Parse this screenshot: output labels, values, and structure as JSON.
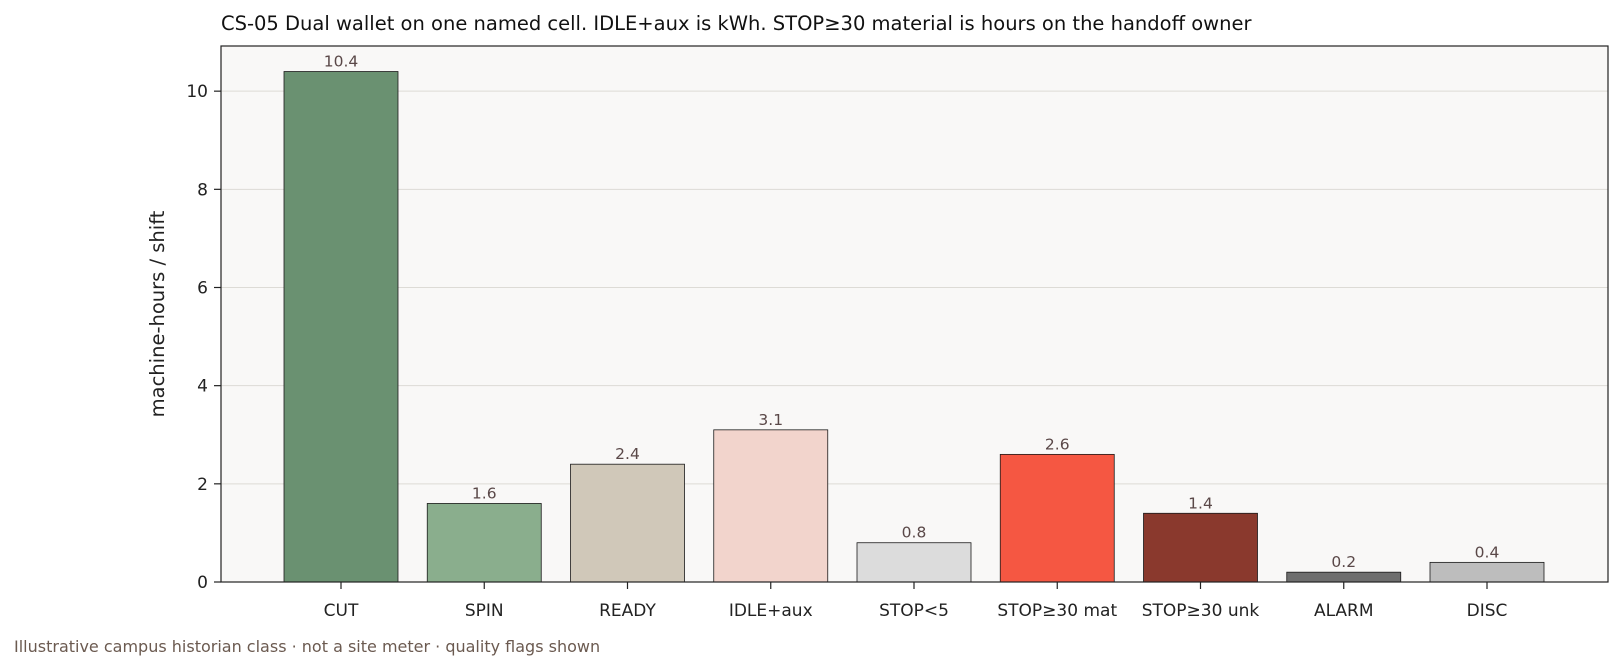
{
  "chart_data": {
    "type": "bar",
    "title": "CS-05  Dual wallet on one named cell. IDLE+aux is kWh. STOP≥30 material is hours on the handoff owner",
    "xlabel": "",
    "ylabel": "machine-hours / shift",
    "ylim": [
      0,
      10.92
    ],
    "yticks": [
      0,
      2,
      4,
      6,
      8,
      10
    ],
    "grid": "horizontal",
    "categories": [
      "CUT",
      "SPIN",
      "READY",
      "IDLE+aux",
      "STOP<5",
      "STOP≥30 mat",
      "STOP≥30 unk",
      "ALARM",
      "DISC"
    ],
    "values": [
      10.4,
      1.6,
      2.4,
      3.1,
      0.8,
      2.6,
      1.4,
      0.2,
      0.4
    ],
    "value_labels": [
      "10.4",
      "1.6",
      "2.4",
      "3.1",
      "0.8",
      "2.6",
      "1.4",
      "0.2",
      "0.4"
    ],
    "colors": [
      "#6a9171",
      "#8aae8d",
      "#d0c8b9",
      "#f2d4cc",
      "#dcdcdc",
      "#f55742",
      "#8a392d",
      "#6e6e6e",
      "#bdbdbd"
    ],
    "plot_background": "#f9f8f7",
    "footnote": "Illustrative campus historian class  ·  not a site meter  ·  quality flags shown"
  }
}
